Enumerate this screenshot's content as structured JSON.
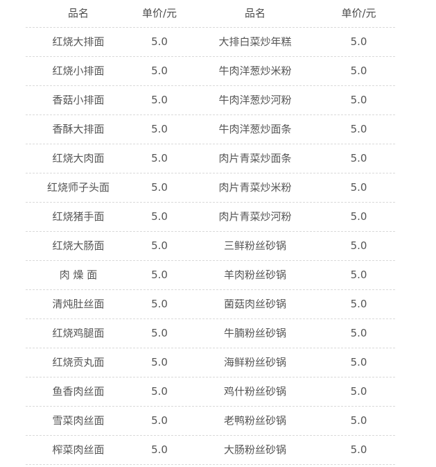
{
  "colors": {
    "background": "#ffffff",
    "text": "#555555",
    "header_text": "#4d4d4d",
    "divider": "#d9d9d9"
  },
  "table": {
    "headers": [
      "品名",
      "单价/元",
      "品名",
      "单价/元"
    ],
    "rows": [
      {
        "left_name": "红烧大排面",
        "left_price": "5.0",
        "right_name": "大排白菜炒年糕",
        "right_price": "5.0"
      },
      {
        "left_name": "红烧小排面",
        "left_price": "5.0",
        "right_name": "牛肉洋葱炒米粉",
        "right_price": "5.0"
      },
      {
        "left_name": "香菇小排面",
        "left_price": "5.0",
        "right_name": "牛肉洋葱炒河粉",
        "right_price": "5.0"
      },
      {
        "left_name": "香酥大排面",
        "left_price": "5.0",
        "right_name": "牛肉洋葱炒面条",
        "right_price": "5.0"
      },
      {
        "left_name": "红烧大肉面",
        "left_price": "5.0",
        "right_name": "肉片青菜炒面条",
        "right_price": "5.0"
      },
      {
        "left_name": "红烧师子头面",
        "left_price": "5.0",
        "right_name": "肉片青菜炒米粉",
        "right_price": "5.0"
      },
      {
        "left_name": "红烧猪手面",
        "left_price": "5.0",
        "right_name": "肉片青菜炒河粉",
        "right_price": "5.0"
      },
      {
        "left_name": "红烧大肠面",
        "left_price": "5.0",
        "right_name": "三鲜粉丝砂锅",
        "right_price": "5.0"
      },
      {
        "left_name": "肉 燥 面",
        "left_price": "5.0",
        "right_name": "羊肉粉丝砂锅",
        "right_price": "5.0"
      },
      {
        "left_name": "清炖肚丝面",
        "left_price": "5.0",
        "right_name": "菌菇肉丝砂锅",
        "right_price": "5.0"
      },
      {
        "left_name": "红烧鸡腿面",
        "left_price": "5.0",
        "right_name": "牛腩粉丝砂锅",
        "right_price": "5.0"
      },
      {
        "left_name": "红烧贡丸面",
        "left_price": "5.0",
        "right_name": "海鲜粉丝砂锅",
        "right_price": "5.0"
      },
      {
        "left_name": "鱼香肉丝面",
        "left_price": "5.0",
        "right_name": "鸡什粉丝砂锅",
        "right_price": "5.0"
      },
      {
        "left_name": "雪菜肉丝面",
        "left_price": "5.0",
        "right_name": "老鸭粉丝砂锅",
        "right_price": "5.0"
      },
      {
        "left_name": "榨菜肉丝面",
        "left_price": "5.0",
        "right_name": "大肠粉丝砂锅",
        "right_price": "5.0"
      }
    ]
  }
}
